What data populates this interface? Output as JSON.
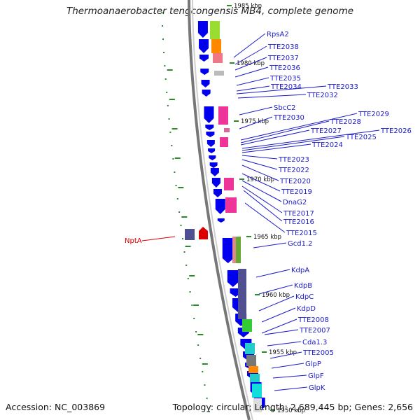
{
  "title": "Thermoanaerobacter tengcongensis MB4, complete genome",
  "footer": {
    "accession": "Accession: NC_003869",
    "topology": "Topology: circular; Length: 2,689,445 bp; Genes: 2,656"
  },
  "kbp_markers": [
    "1985 kbp",
    "1980 kbp",
    "1975 kbp",
    "1970 kbp",
    "1965 kbp",
    "1960 kbp",
    "1955 kbp",
    "1950 kbp"
  ],
  "genes": [
    "RpsA2",
    "TTE2038",
    "TTE2037",
    "TTE2036",
    "TTE2035",
    "TTE2034",
    "TTE2033",
    "TTE2032",
    "SbcC2",
    "TTE2030",
    "TTE2029",
    "TTE2028",
    "TTE2027",
    "TTE2026",
    "TTE2025",
    "TTE2024",
    "TTE2023",
    "TTE2022",
    "TTE2020",
    "TTE2019",
    "DnaG2",
    "TTE2017",
    "TTE2016",
    "TTE2015",
    "Gcd1.2",
    "KdpA",
    "KdpB",
    "KdpC",
    "KdpD",
    "TTE2008",
    "TTE2007",
    "Cda1.3",
    "TTE2005",
    "GlpP",
    "GlpF",
    "GlpK"
  ],
  "left_genes": [
    "NptA"
  ],
  "colors": {
    "forward_strand": "#0000ee",
    "reverse_strand_gene": "#dd0000",
    "label": "#1a1acc",
    "backbone": "#888888",
    "tick": "#2a8a2a"
  }
}
